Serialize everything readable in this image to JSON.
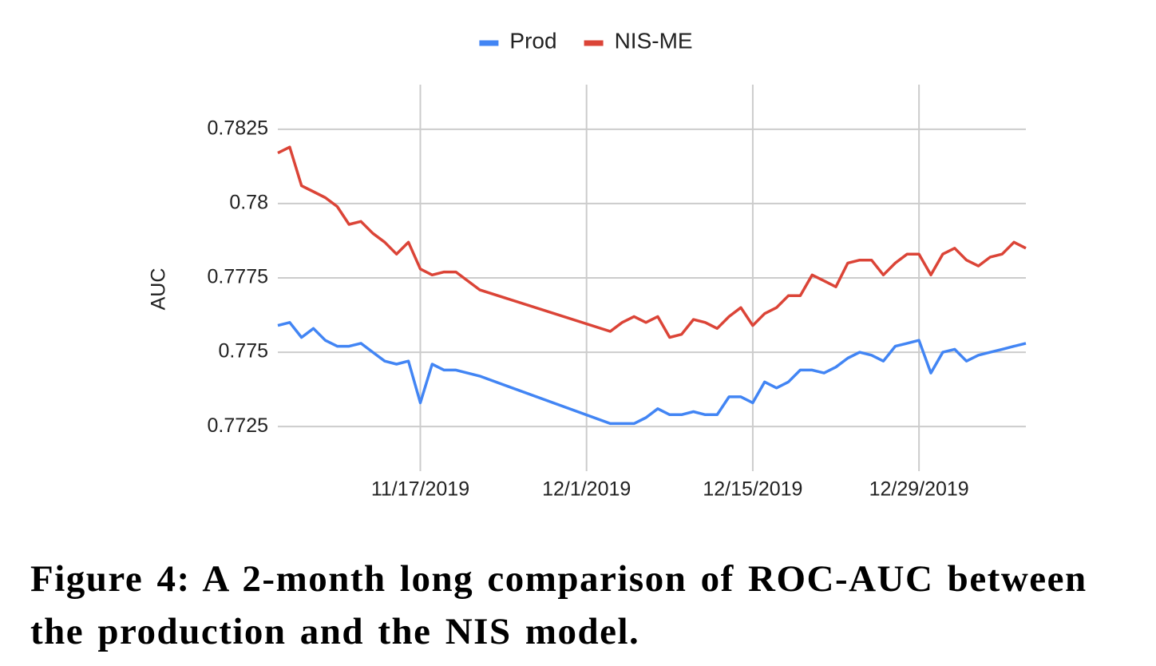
{
  "chart_data": {
    "type": "line",
    "y_label": "AUC",
    "caption": "Figure 4: A 2-month long comparison of ROC-AUC between the production and the NIS model.",
    "x": [
      "2019-11-05",
      "2019-11-06",
      "2019-11-07",
      "2019-11-08",
      "2019-11-09",
      "2019-11-10",
      "2019-11-11",
      "2019-11-12",
      "2019-11-13",
      "2019-11-14",
      "2019-11-15",
      "2019-11-16",
      "2019-11-17",
      "2019-11-18",
      "2019-11-19",
      "2019-11-20",
      "2019-11-22",
      "2019-12-03",
      "2019-12-04",
      "2019-12-05",
      "2019-12-06",
      "2019-12-07",
      "2019-12-08",
      "2019-12-09",
      "2019-12-10",
      "2019-12-11",
      "2019-12-12",
      "2019-12-13",
      "2019-12-14",
      "2019-12-15",
      "2019-12-16",
      "2019-12-17",
      "2019-12-18",
      "2019-12-19",
      "2019-12-20",
      "2019-12-21",
      "2019-12-22",
      "2019-12-23",
      "2019-12-24",
      "2019-12-25",
      "2019-12-26",
      "2019-12-27",
      "2019-12-28",
      "2019-12-29",
      "2019-12-30",
      "2019-12-31",
      "2020-01-01",
      "2020-01-02",
      "2020-01-03",
      "2020-01-04",
      "2020-01-05",
      "2020-01-06",
      "2020-01-07"
    ],
    "series": [
      {
        "name": "Prod",
        "color": "#4285f4",
        "values": [
          0.7759,
          0.776,
          0.7755,
          0.7758,
          0.7754,
          0.7752,
          0.7752,
          0.7753,
          0.775,
          0.7747,
          0.7746,
          0.7747,
          0.7733,
          0.7746,
          0.7744,
          0.7744,
          0.7742,
          0.7726,
          0.7726,
          0.7726,
          0.7728,
          0.7731,
          0.7729,
          0.7729,
          0.773,
          0.7729,
          0.7729,
          0.7735,
          0.7735,
          0.7733,
          0.774,
          0.7738,
          0.774,
          0.7744,
          0.7744,
          0.7743,
          0.7745,
          0.7748,
          0.775,
          0.7749,
          0.7747,
          0.7752,
          0.7753,
          0.7754,
          0.7743,
          0.775,
          0.7751,
          0.7747,
          0.7749,
          0.775,
          0.7751,
          0.7752,
          0.7753
        ]
      },
      {
        "name": "NIS-ME",
        "color": "#db4437",
        "values": [
          0.7817,
          0.7819,
          0.7806,
          0.7804,
          0.7802,
          0.7799,
          0.7793,
          0.7794,
          0.779,
          0.7787,
          0.7783,
          0.7787,
          0.7778,
          0.7776,
          0.7777,
          0.7777,
          0.7771,
          0.7757,
          0.776,
          0.7762,
          0.776,
          0.7762,
          0.7755,
          0.7756,
          0.7761,
          0.776,
          0.7758,
          0.7762,
          0.7765,
          0.7759,
          0.7763,
          0.7765,
          0.7769,
          0.7769,
          0.7776,
          0.7774,
          0.7772,
          0.778,
          0.7781,
          0.7781,
          0.7776,
          0.778,
          0.7783,
          0.7783,
          0.7776,
          0.7783,
          0.7785,
          0.7781,
          0.7779,
          0.7782,
          0.7783,
          0.7787,
          0.7785
        ]
      }
    ],
    "xlim": [
      "2019-11-05",
      "2020-01-07"
    ],
    "xticks": [
      {
        "value": "2019-11-17",
        "label": "11/17/2019"
      },
      {
        "value": "2019-12-01",
        "label": "12/1/2019"
      },
      {
        "value": "2019-12-15",
        "label": "12/15/2019"
      },
      {
        "value": "2019-12-29",
        "label": "12/29/2019"
      }
    ],
    "ylim": [
      0.771,
      0.784
    ],
    "yticks": [
      0.7725,
      0.775,
      0.7775,
      0.78,
      0.7825
    ],
    "grid": true,
    "legend": "top"
  }
}
